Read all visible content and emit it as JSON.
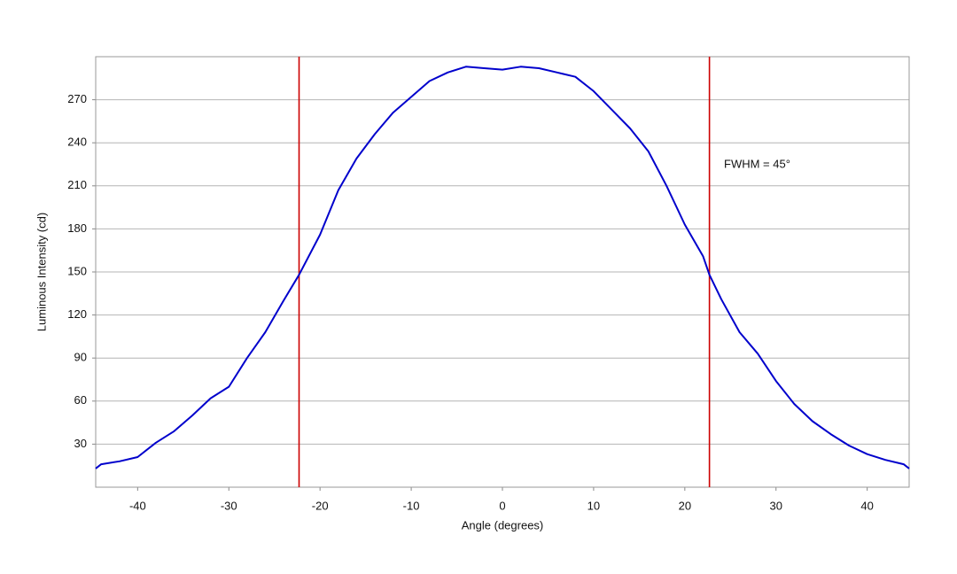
{
  "chart_data": {
    "type": "line",
    "x_label": "Angle (degrees)",
    "y_label": "Luminous Intensity (cd)",
    "annotation": "FWHM = 45°",
    "x": [
      -44.6,
      -44,
      -42,
      -40,
      -38,
      -36,
      -34,
      -32,
      -30,
      -28,
      -26,
      -24,
      -22.3,
      -20,
      -18,
      -16,
      -14,
      -12,
      -10,
      -8,
      -6,
      -4,
      -2,
      0,
      2,
      4,
      6,
      8,
      10,
      12,
      14,
      16,
      18,
      20,
      22,
      22.7,
      24,
      26,
      28,
      30,
      32,
      34,
      36,
      38,
      40,
      42,
      44,
      44.6
    ],
    "series": [
      {
        "color": "#0000cc",
        "values": [
          13,
          16,
          18,
          21,
          31,
          39,
          50,
          62,
          70,
          90,
          108,
          130,
          148,
          176,
          207,
          229,
          246,
          261,
          272,
          283,
          289,
          293,
          292,
          291,
          293,
          292,
          289,
          286,
          276,
          263,
          250,
          234,
          210,
          183,
          161,
          148,
          131,
          108,
          93,
          74,
          58,
          46,
          37,
          29,
          23,
          19,
          16,
          13
        ]
      }
    ],
    "vlines": [
      -22.3,
      22.7
    ],
    "vline_color": "#cc0000",
    "xlim": [
      -44.6,
      44.6
    ],
    "ylim": [
      0,
      300
    ],
    "xticks": [
      -40,
      -30,
      -20,
      -10,
      0,
      10,
      20,
      30,
      40
    ],
    "yticks": [
      30,
      60,
      90,
      120,
      150,
      180,
      210,
      240,
      270
    ],
    "grid": true
  }
}
